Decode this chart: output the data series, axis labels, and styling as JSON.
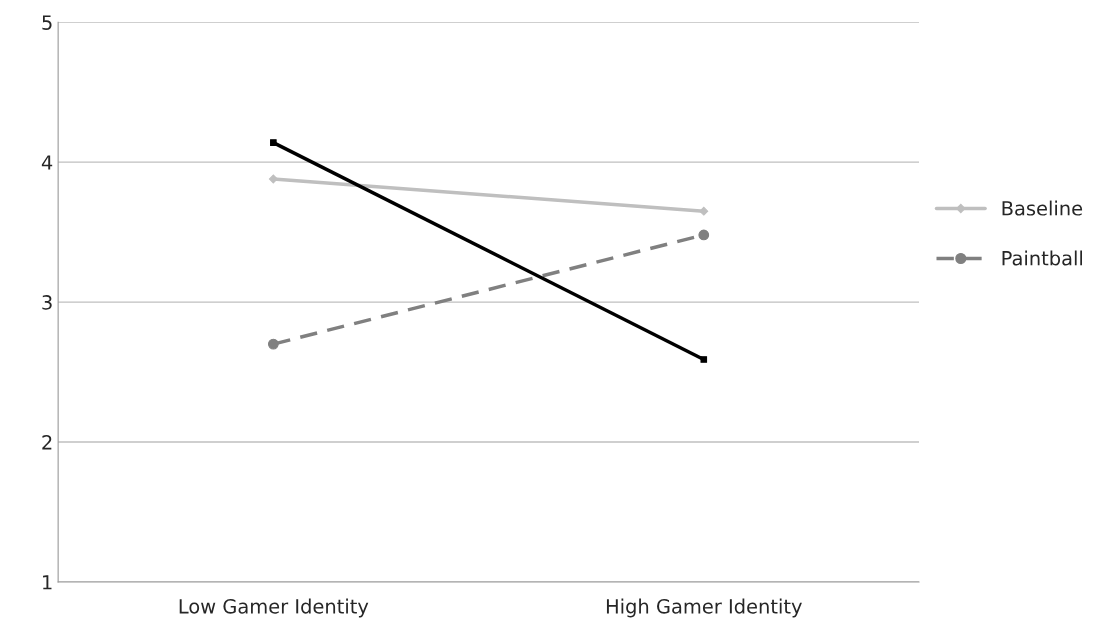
{
  "chart_data": {
    "type": "line",
    "categories": [
      "Low Gamer Identity",
      "High Gamer Identity"
    ],
    "series": [
      {
        "name": "Baseline",
        "color": "#bfbfbf",
        "values": [
          3.88,
          3.65
        ],
        "marker": "diamond",
        "line_style": "solid"
      },
      {
        "name": "Paintball",
        "color": "#808080",
        "values": [
          2.7,
          3.48
        ],
        "marker": "circle",
        "line_style": "dashed"
      },
      {
        "color": "#000000",
        "values": [
          4.14,
          2.59
        ],
        "marker": "square",
        "line_style": "solid"
      }
    ],
    "ylim": [
      1,
      5
    ],
    "yticks": [
      1,
      2,
      3,
      4,
      5
    ],
    "grid": "y",
    "legend": "right"
  }
}
